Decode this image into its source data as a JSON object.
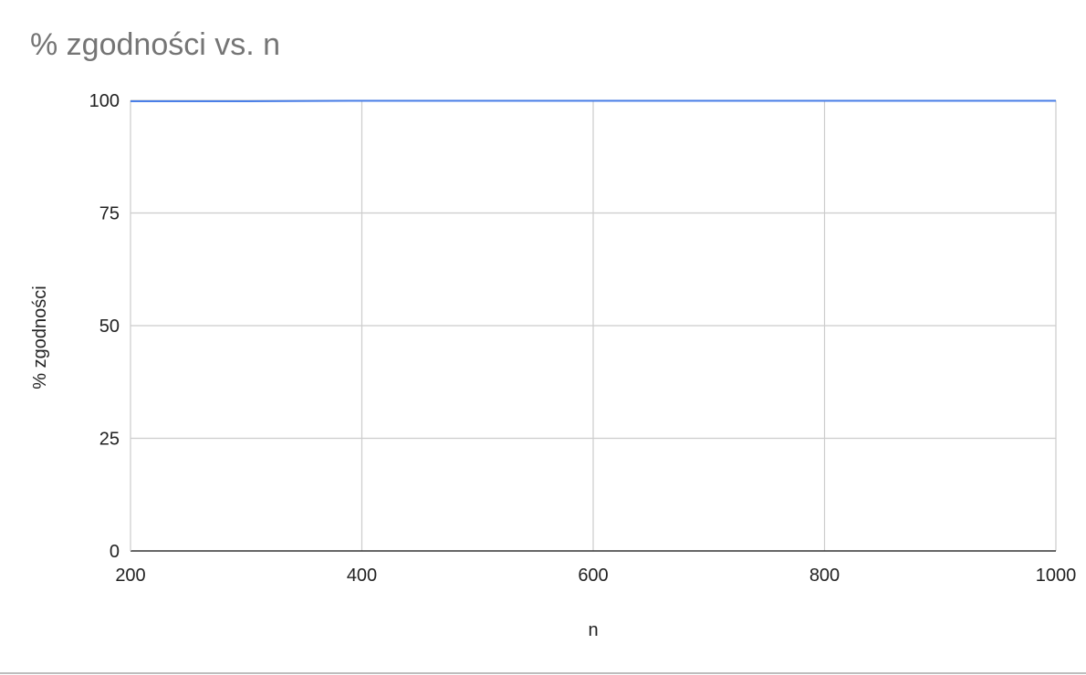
{
  "chart_data": {
    "type": "line",
    "title": "% zgodności vs. n",
    "xlabel": "n",
    "ylabel": "% zgodności",
    "xlim": [
      200,
      1000
    ],
    "ylim": [
      0,
      100
    ],
    "xticks": [
      "200",
      "400",
      "600",
      "800",
      "1000"
    ],
    "yticks": [
      "0",
      "25",
      "50",
      "75",
      "100"
    ],
    "grid": true,
    "legend": "none",
    "series": [
      {
        "color": "#4a7fe8",
        "x": [
          200,
          300,
          400,
          500,
          600,
          700,
          800,
          900,
          1000
        ],
        "y": [
          99.8,
          99.8,
          99.9,
          99.9,
          99.9,
          99.9,
          99.9,
          99.9,
          99.9
        ]
      }
    ]
  }
}
